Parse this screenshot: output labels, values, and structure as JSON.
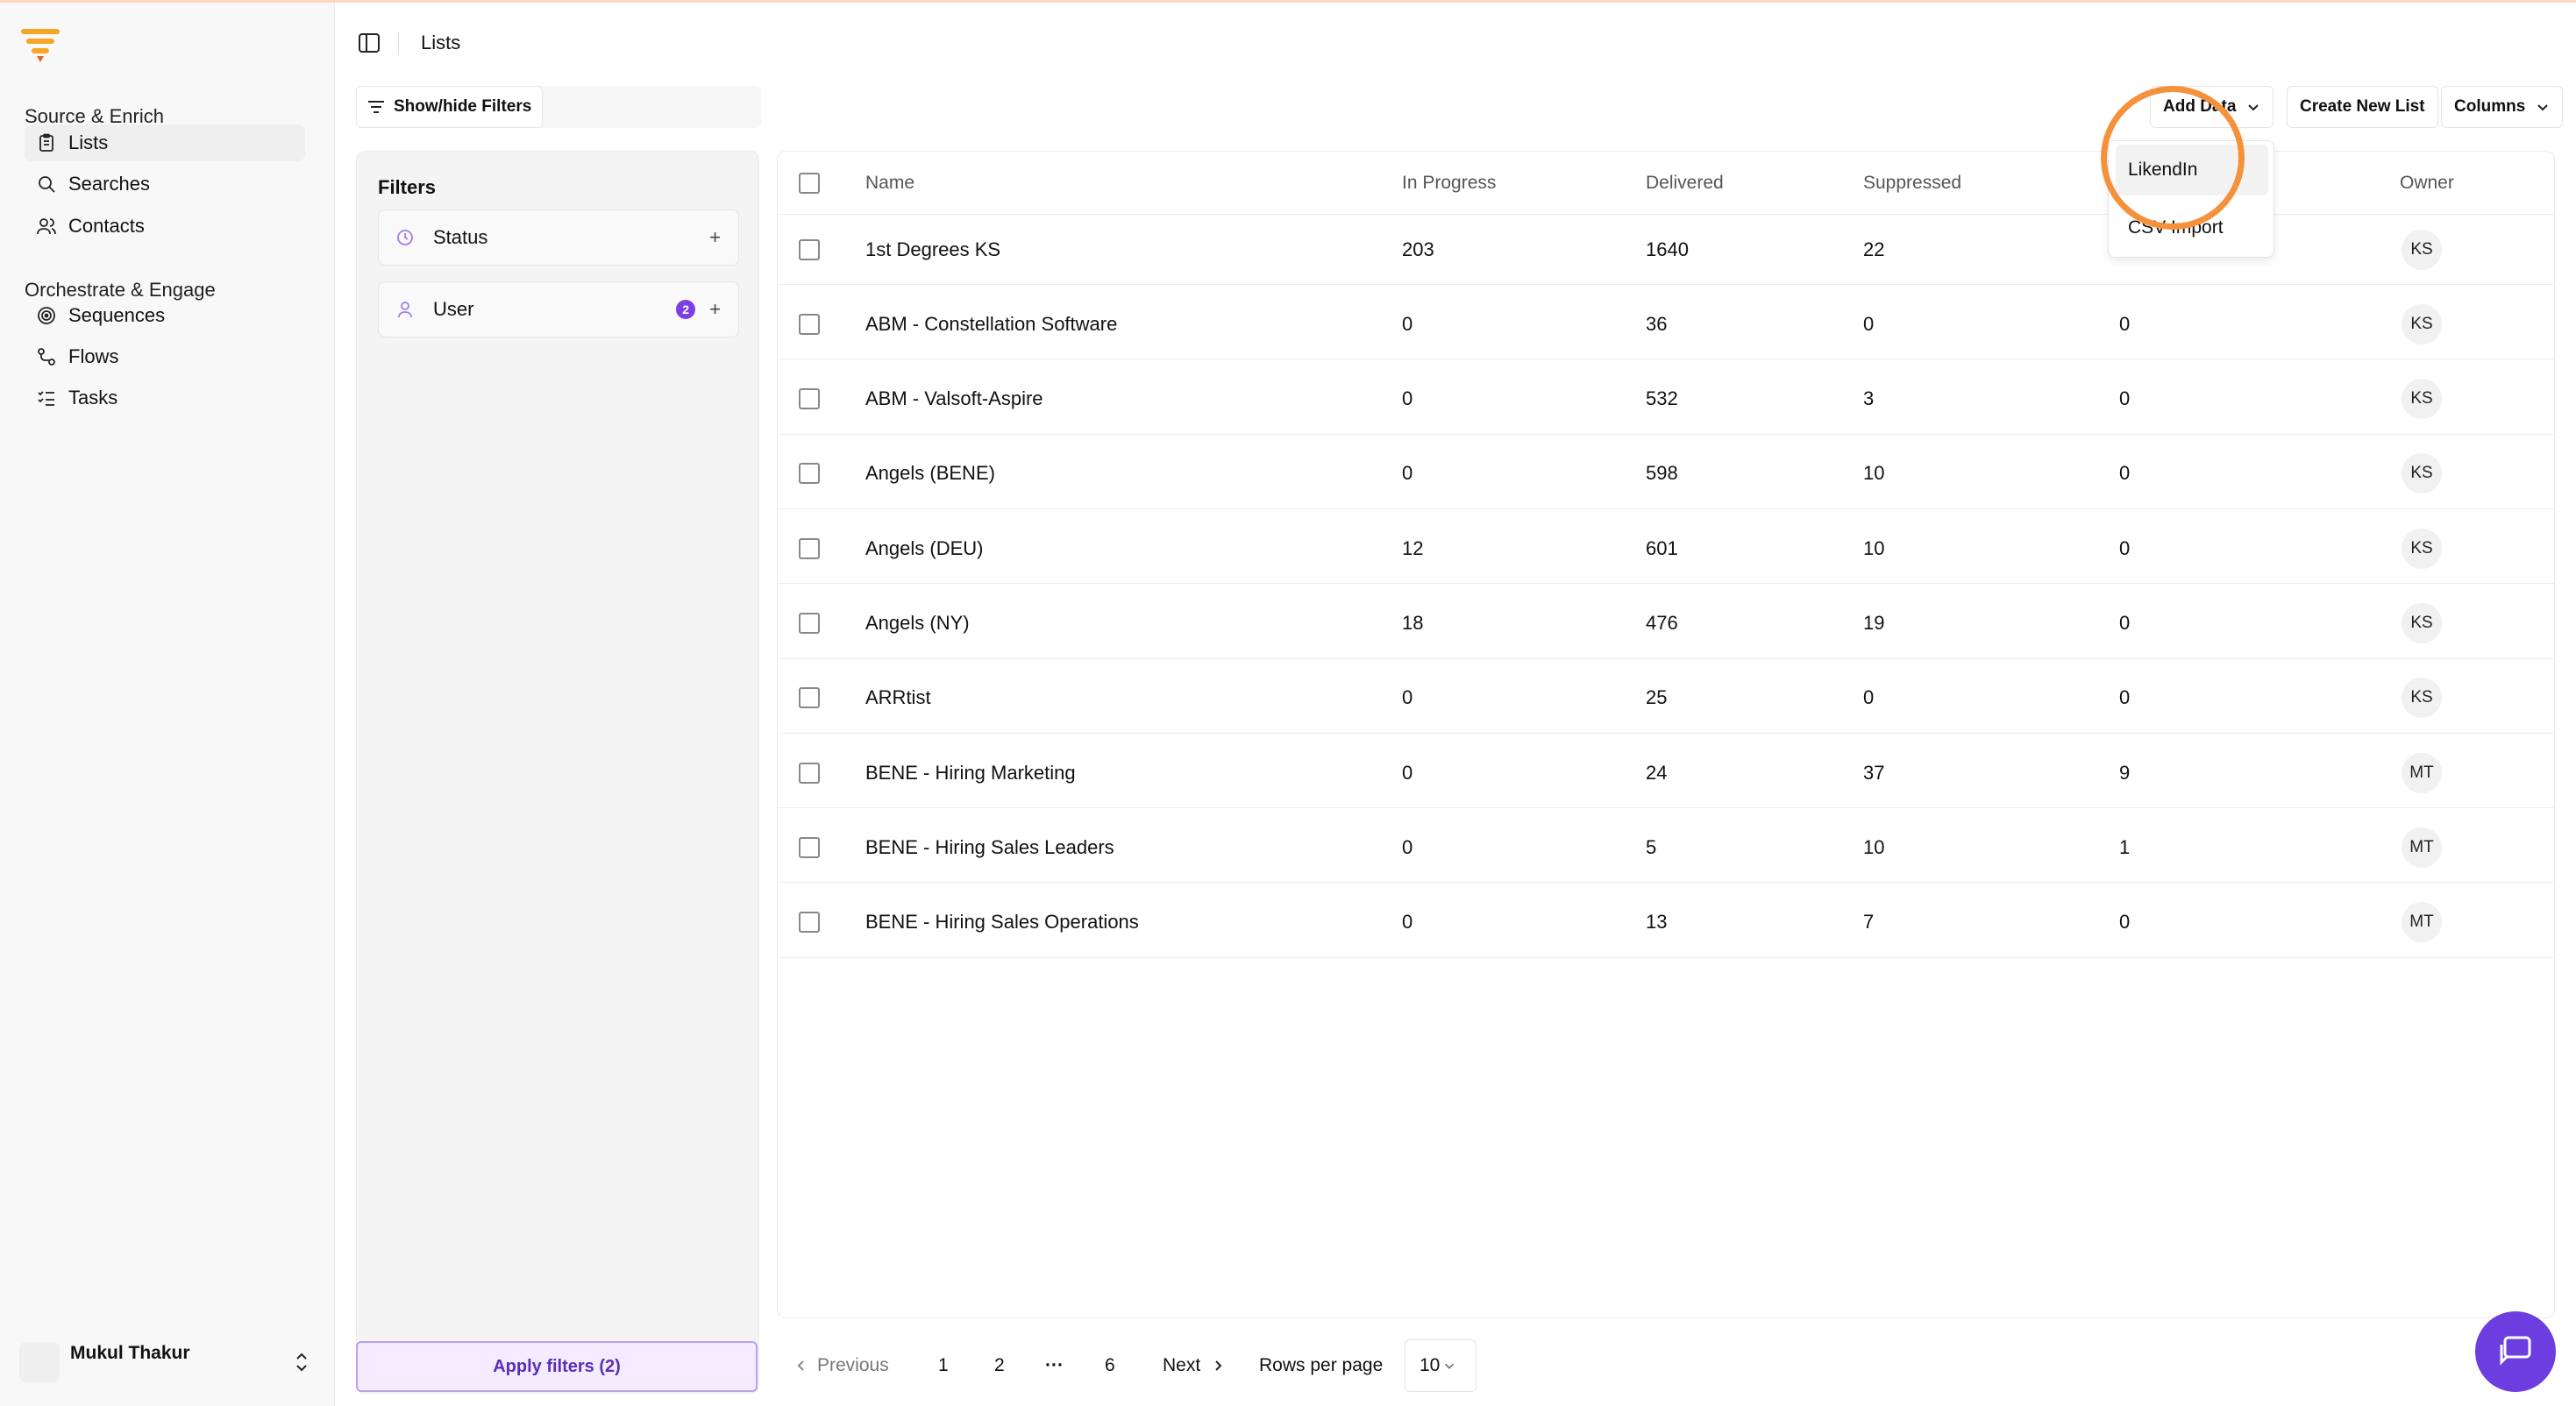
{
  "brand": {
    "accent": "#f5a623",
    "purple": "#6c3ee0",
    "highlight": "#f5913b"
  },
  "sidebar": {
    "section1": "Source & Enrich",
    "items1": [
      {
        "label": "Lists",
        "icon": "clipboard-icon",
        "active": true
      },
      {
        "label": "Searches",
        "icon": "search-icon"
      },
      {
        "label": "Contacts",
        "icon": "users-icon"
      }
    ],
    "section2": "Orchestrate & Engage",
    "items2": [
      {
        "label": "Sequences",
        "icon": "target-icon"
      },
      {
        "label": "Flows",
        "icon": "flow-icon"
      },
      {
        "label": "Tasks",
        "icon": "tasks-icon"
      }
    ],
    "user_name": "Mukul Thakur"
  },
  "header": {
    "breadcrumb": "Lists"
  },
  "toolbar": {
    "showhide": "Show/hide Filters",
    "add_data": "Add Data",
    "create_list": "Create New List",
    "columns": "Columns"
  },
  "dropdown": {
    "items": [
      "LikendIn",
      "CSV Import"
    ]
  },
  "filters": {
    "title": "Filters",
    "status": "Status",
    "user": "User",
    "user_count": "2",
    "apply": "Apply filters (2)"
  },
  "table": {
    "headers": [
      "Name",
      "In Progress",
      "Delivered",
      "Suppressed",
      "Owner"
    ],
    "rows": [
      {
        "name": "1st Degrees KS",
        "in_progress": "203",
        "delivered": "1640",
        "suppressed": "22",
        "extra": "",
        "owner": "KS"
      },
      {
        "name": "ABM - Constellation Software",
        "in_progress": "0",
        "delivered": "36",
        "suppressed": "0",
        "extra": "0",
        "owner": "KS"
      },
      {
        "name": "ABM - Valsoft-Aspire",
        "in_progress": "0",
        "delivered": "532",
        "suppressed": "3",
        "extra": "0",
        "owner": "KS"
      },
      {
        "name": "Angels (BENE)",
        "in_progress": "0",
        "delivered": "598",
        "suppressed": "10",
        "extra": "0",
        "owner": "KS"
      },
      {
        "name": "Angels (DEU)",
        "in_progress": "12",
        "delivered": "601",
        "suppressed": "10",
        "extra": "0",
        "owner": "KS"
      },
      {
        "name": "Angels (NY)",
        "in_progress": "18",
        "delivered": "476",
        "suppressed": "19",
        "extra": "0",
        "owner": "KS"
      },
      {
        "name": "ARRtist",
        "in_progress": "0",
        "delivered": "25",
        "suppressed": "0",
        "extra": "0",
        "owner": "KS"
      },
      {
        "name": "BENE - Hiring Marketing",
        "in_progress": "0",
        "delivered": "24",
        "suppressed": "37",
        "extra": "9",
        "owner": "MT"
      },
      {
        "name": "BENE - Hiring Sales Leaders",
        "in_progress": "0",
        "delivered": "5",
        "suppressed": "10",
        "extra": "1",
        "owner": "MT"
      },
      {
        "name": "BENE - Hiring Sales Operations",
        "in_progress": "0",
        "delivered": "13",
        "suppressed": "7",
        "extra": "0",
        "owner": "MT"
      }
    ]
  },
  "pagination": {
    "previous": "Previous",
    "pages": [
      "1",
      "2",
      "6"
    ],
    "ellipsis": "···",
    "next": "Next",
    "rows_label": "Rows per page",
    "rows_value": "10"
  }
}
